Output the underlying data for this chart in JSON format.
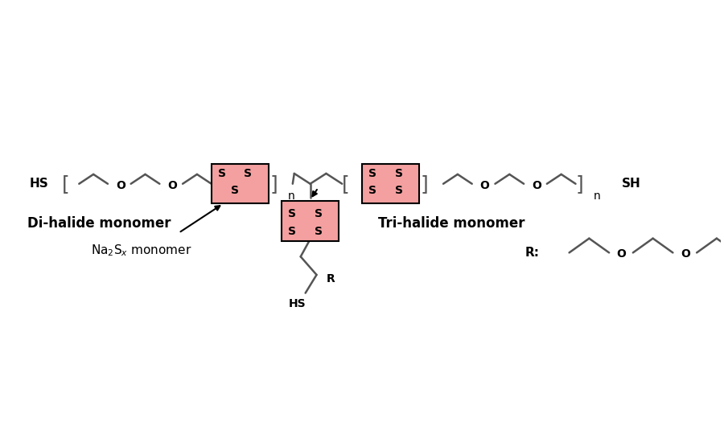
{
  "bg_color": "#ffffff",
  "line_color": "#555555",
  "highlight_color": "#f4a0a0",
  "text_color": "#000000",
  "fig_width": 9.0,
  "fig_height": 5.5,
  "main_y": 3.22,
  "xlim": [
    0,
    9
  ],
  "ylim": [
    0,
    5.5
  ]
}
